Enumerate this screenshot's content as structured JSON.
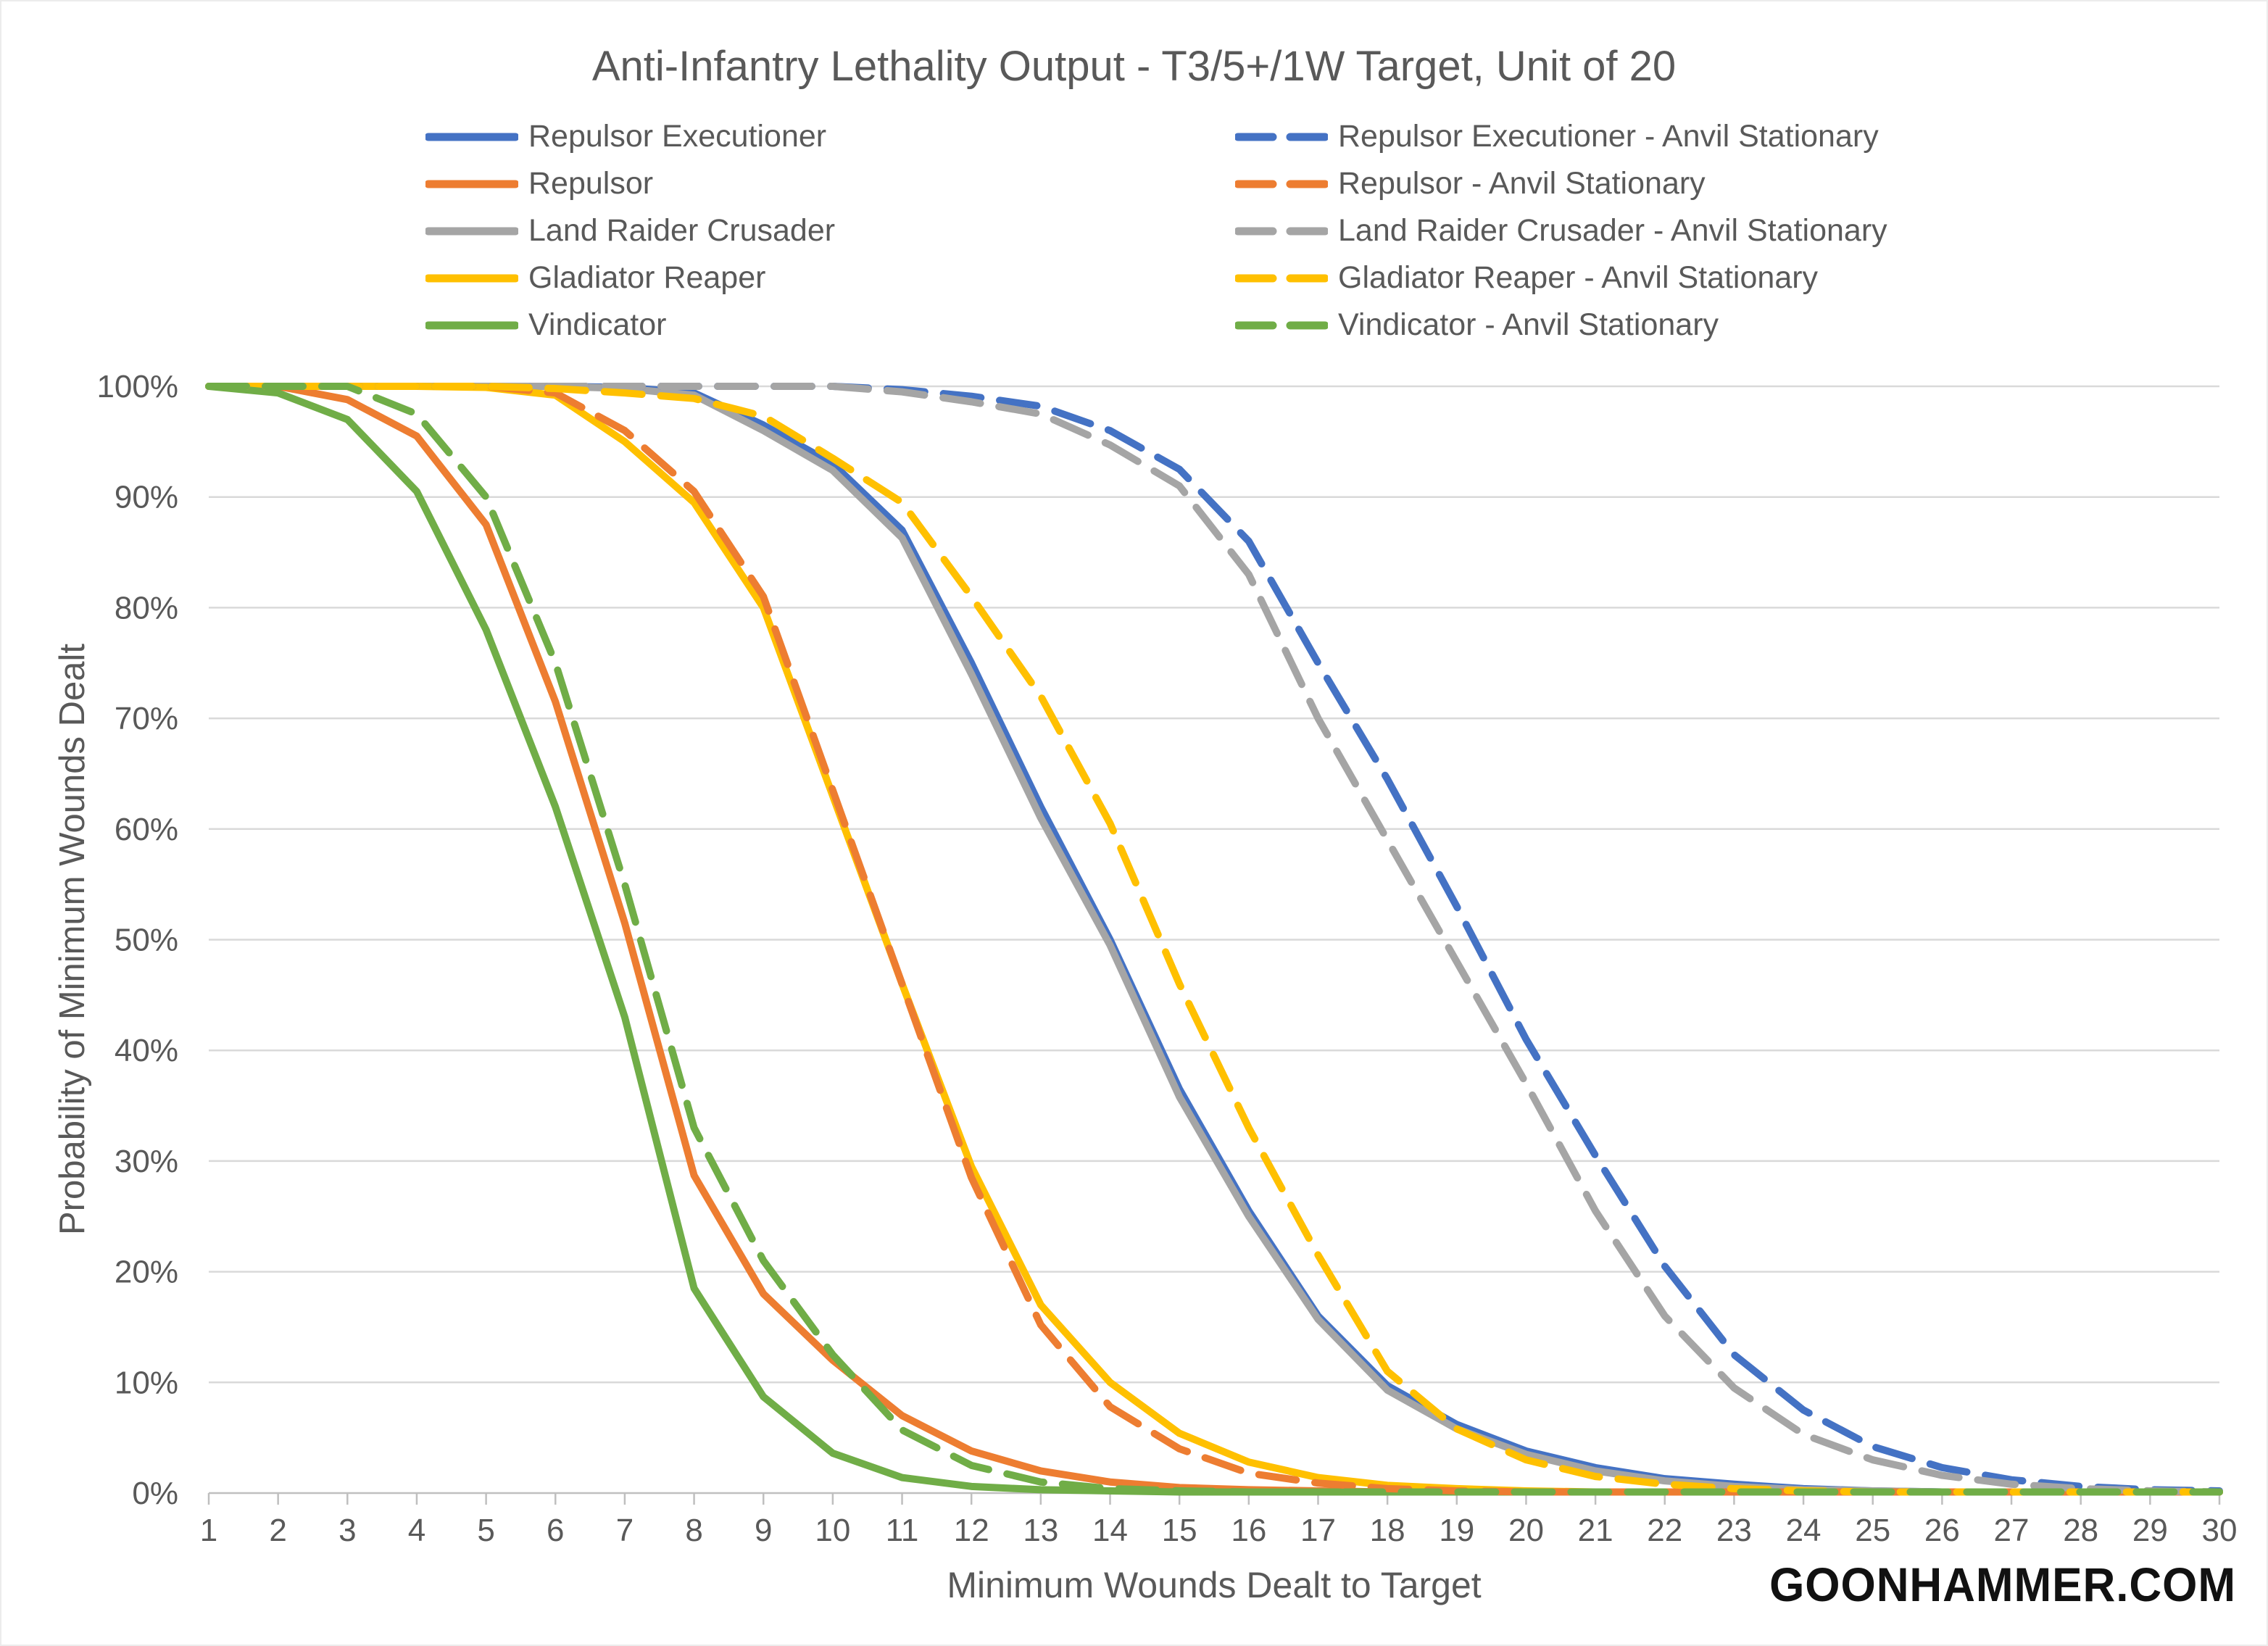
{
  "title": "Anti-Infantry Lethality Output - T3/5+/1W Target, Unit of 20",
  "watermark": "GOONHAMMER.COM",
  "colors": {
    "text": "#595959",
    "gridline": "#D9D9D9",
    "axis_line": "#BFBFBF",
    "blue": "#4472C4",
    "orange": "#ED7D31",
    "gray": "#A5A5A5",
    "yellow": "#FFC000",
    "green": "#70AD47",
    "watermark": "#111111"
  },
  "chart_data": {
    "type": "line",
    "title": "Anti-Infantry Lethality Output - T3/5+/1W Target, Unit of 20",
    "xlabel": "Minimum Wounds Dealt to Target",
    "ylabel": "Probability of Minimum Wounds Dealt",
    "ylim": [
      0,
      100
    ],
    "grid": "horizontal",
    "legend_position": "top, two columns (solid left, dashed right)",
    "x": [
      1,
      2,
      3,
      4,
      5,
      6,
      7,
      8,
      9,
      10,
      11,
      12,
      13,
      14,
      15,
      16,
      17,
      18,
      19,
      20,
      21,
      22,
      23,
      24,
      25,
      26,
      27,
      28,
      29,
      30
    ],
    "y_ticks": [
      {
        "value": 100,
        "label": "100%"
      },
      {
        "value": 90,
        "label": "90%"
      },
      {
        "value": 80,
        "label": "80%"
      },
      {
        "value": 70,
        "label": "70%"
      },
      {
        "value": 60,
        "label": "60%"
      },
      {
        "value": 50,
        "label": "50%"
      },
      {
        "value": 40,
        "label": "40%"
      },
      {
        "value": 30,
        "label": "30%"
      },
      {
        "value": 20,
        "label": "20%"
      },
      {
        "value": 10,
        "label": "10%"
      },
      {
        "value": 0,
        "label": "0%"
      }
    ],
    "series": [
      {
        "id": "repulsor-executioner",
        "name": "Repulsor Executioner",
        "color": "#4472C4",
        "dashed": false,
        "values": [
          100,
          100,
          100,
          100,
          100,
          100,
          99.9,
          99.4,
          96.5,
          93,
          87,
          75,
          62,
          50,
          36.5,
          25.5,
          16,
          9.7,
          6.2,
          3.8,
          2.3,
          1.3,
          0.8,
          0.4,
          0.2,
          0.1,
          0.1,
          0.1,
          0.1,
          0.1
        ]
      },
      {
        "id": "repulsor",
        "name": "Repulsor",
        "color": "#ED7D31",
        "dashed": false,
        "values": [
          100,
          100,
          98.8,
          95.5,
          87.5,
          71.5,
          51.5,
          28.7,
          18,
          12,
          7,
          3.8,
          2,
          1,
          0.5,
          0.3,
          0.2,
          0.1,
          0.1,
          0.1,
          0.1,
          0.1,
          0.1,
          0.1,
          0.1,
          0.1,
          0.1,
          0.1,
          0.1,
          0.1
        ]
      },
      {
        "id": "land-raider-crusader",
        "name": "Land Raider Crusader",
        "color": "#A5A5A5",
        "dashed": false,
        "values": [
          100,
          100,
          100,
          100,
          100,
          100,
          99.8,
          99.2,
          96,
          92.4,
          86.3,
          74,
          61,
          49.5,
          35.8,
          25,
          15.7,
          9.3,
          5.8,
          3.5,
          2,
          1.1,
          0.6,
          0.3,
          0.2,
          0.1,
          0.1,
          0.1,
          0.1,
          0.1
        ]
      },
      {
        "id": "gladiator-reaper",
        "name": "Gladiator Reaper",
        "color": "#FFC000",
        "dashed": false,
        "values": [
          100,
          100,
          100,
          100,
          99.9,
          99.2,
          95,
          89.5,
          80,
          63,
          46,
          29.5,
          17,
          10,
          5.4,
          2.8,
          1.4,
          0.7,
          0.4,
          0.2,
          0.1,
          0.1,
          0.1,
          0.1,
          0.1,
          0.1,
          0.1,
          0.1,
          0.1,
          0.1
        ]
      },
      {
        "id": "vindicator",
        "name": "Vindicator",
        "color": "#70AD47",
        "dashed": false,
        "values": [
          100,
          99.4,
          97,
          90.5,
          78,
          62,
          43,
          18.5,
          8.7,
          3.6,
          1.4,
          0.6,
          0.3,
          0.2,
          0.1,
          0.1,
          0.1,
          0.1,
          0.1,
          0.1,
          0.1,
          0.1,
          0.1,
          0.1,
          0.1,
          0.1,
          0.1,
          0.1,
          0.1,
          0.1
        ]
      },
      {
        "id": "repulsor-executioner-anvil",
        "name": "Repulsor Executioner - Anvil Stationary",
        "color": "#4472C4",
        "dashed": true,
        "values": [
          100,
          100,
          100,
          100,
          100,
          100,
          100,
          100,
          100,
          100,
          99.7,
          99.1,
          98.2,
          96,
          92.5,
          86,
          75,
          64.5,
          53,
          41,
          30.5,
          20.5,
          12.5,
          7.5,
          4.2,
          2.3,
          1.2,
          0.6,
          0.3,
          0.2
        ]
      },
      {
        "id": "repulsor-anvil",
        "name": "Repulsor - Anvil Stationary",
        "color": "#ED7D31",
        "dashed": true,
        "values": [
          100,
          100,
          100,
          100,
          100,
          99.4,
          96,
          90.5,
          81,
          63.5,
          46,
          28.5,
          15.2,
          7.8,
          4,
          1.8,
          0.9,
          0.4,
          0.2,
          0.1,
          0.1,
          0.1,
          0.1,
          0.1,
          0.1,
          0.1,
          0.1,
          0.1,
          0.1,
          0.1
        ]
      },
      {
        "id": "land-raider-crusader-anvil",
        "name": "Land Raider Crusader - Anvil Stationary",
        "color": "#A5A5A5",
        "dashed": true,
        "values": [
          100,
          100,
          100,
          100,
          100,
          100,
          100,
          100,
          100,
          100,
          99.5,
          98.6,
          97.5,
          94.7,
          91,
          83,
          70,
          59,
          48,
          37,
          25.5,
          16,
          9.5,
          5.3,
          3,
          1.6,
          0.8,
          0.4,
          0.2,
          0.1
        ]
      },
      {
        "id": "gladiator-reaper-anvil",
        "name": "Gladiator Reaper - Anvil Stationary",
        "color": "#FFC000",
        "dashed": true,
        "values": [
          100,
          100,
          100,
          100,
          100,
          99.8,
          99.4,
          98.9,
          97.3,
          93.5,
          89.5,
          81,
          72,
          60.5,
          46,
          33,
          21.5,
          11,
          5.8,
          3,
          1.5,
          0.8,
          0.4,
          0.2,
          0.1,
          0.1,
          0.1,
          0.1,
          0.1,
          0.1
        ]
      },
      {
        "id": "vindicator-anvil",
        "name": "Vindicator - Anvil Stationary",
        "color": "#70AD47",
        "dashed": true,
        "values": [
          100,
          100,
          100,
          97.5,
          90,
          75,
          55,
          33,
          21,
          12.5,
          5.7,
          2.5,
          1,
          0.4,
          0.2,
          0.1,
          0.1,
          0.1,
          0.1,
          0.1,
          0.1,
          0.1,
          0.1,
          0.1,
          0.1,
          0.1,
          0.1,
          0.1,
          0.1,
          0.1
        ]
      }
    ]
  }
}
